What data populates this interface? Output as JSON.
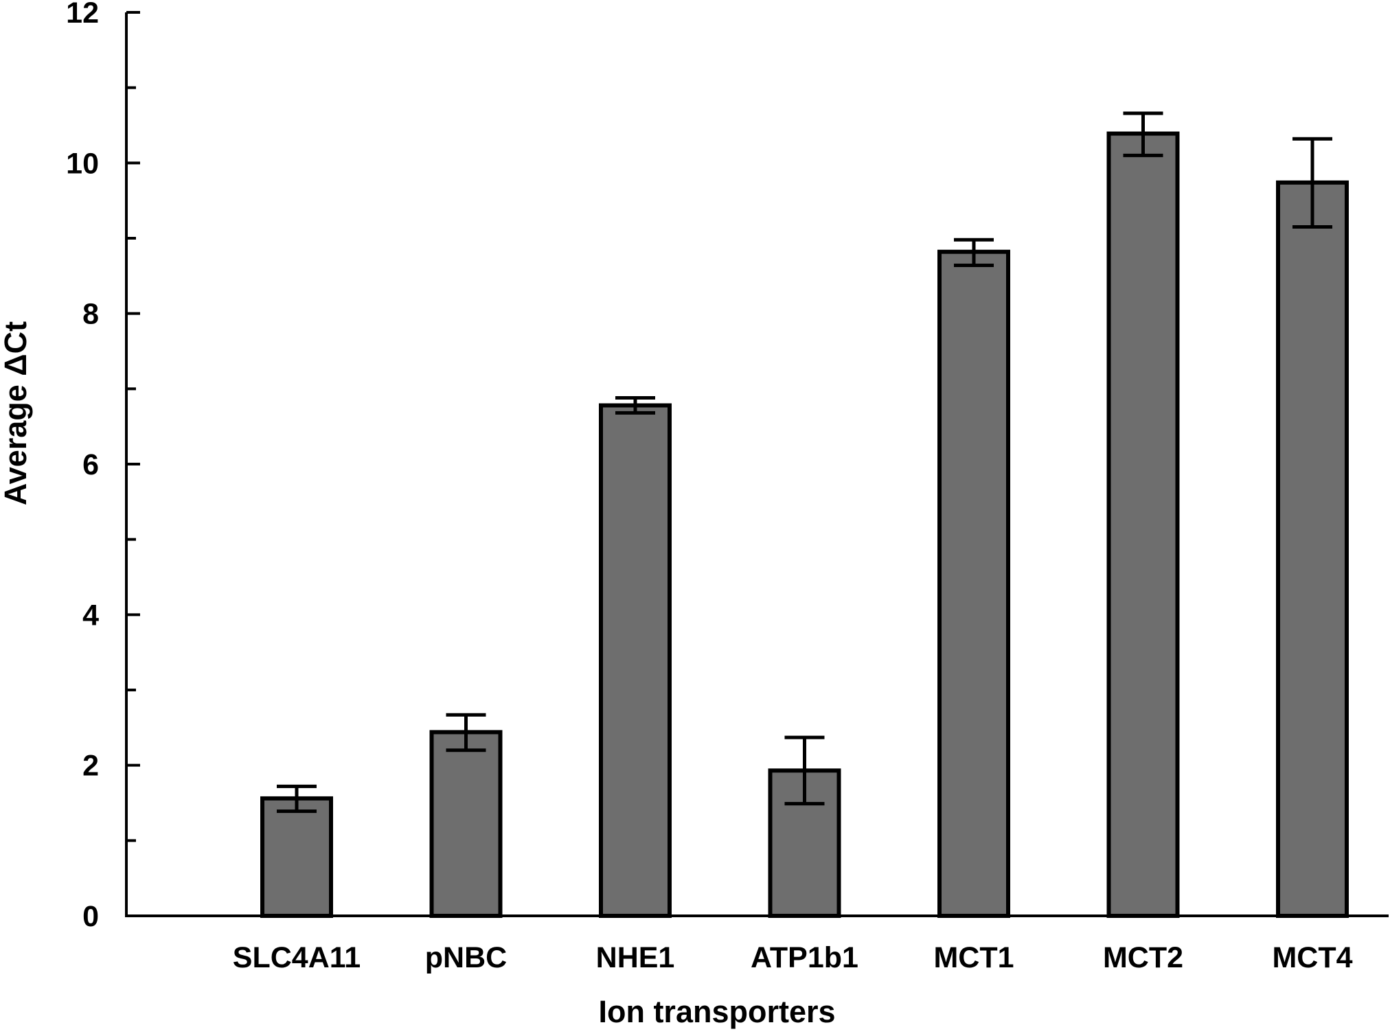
{
  "chart_data": {
    "type": "bar",
    "title": "",
    "xlabel": "Ion transporters",
    "ylabel": "Average ΔCt",
    "categories": [
      "SLC4A11",
      "pNBC",
      "NHE1",
      "ATP1b1",
      "MCT1",
      "MCT2",
      "MCT4"
    ],
    "values": [
      1.56,
      2.44,
      6.78,
      1.93,
      8.82,
      10.39,
      9.74
    ],
    "error_low": [
      1.39,
      2.2,
      6.68,
      1.49,
      8.64,
      10.1,
      9.15
    ],
    "error_high": [
      1.72,
      2.67,
      6.88,
      2.37,
      8.98,
      10.66,
      10.32
    ],
    "ylim": [
      0,
      12
    ],
    "yticks": [
      "0",
      "2",
      "4",
      "6",
      "8",
      "10",
      "12"
    ],
    "yticks_minor": [
      1,
      3,
      5,
      7,
      9,
      11
    ],
    "grid": false,
    "legend": "none",
    "bar_color": "#6e6e6e",
    "edge_color": "#000000"
  }
}
